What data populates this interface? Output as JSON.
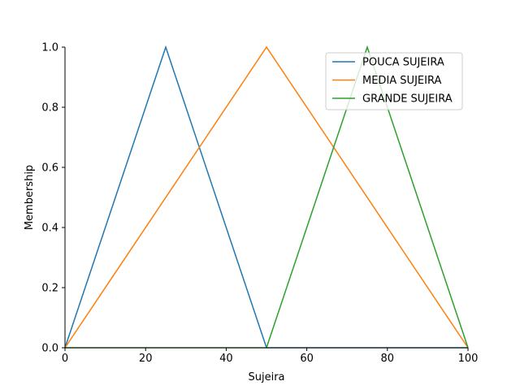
{
  "chart_data": {
    "type": "line",
    "xlabel": "Sujeira",
    "ylabel": "Membership",
    "xlim": [
      0,
      100
    ],
    "ylim": [
      0,
      1.0
    ],
    "xticks": [
      0,
      20,
      40,
      60,
      80,
      100
    ],
    "yticks": [
      "0.0",
      "0.2",
      "0.4",
      "0.6",
      "0.8",
      "1.0"
    ],
    "legend_position": "top-right",
    "grid": false,
    "series": [
      {
        "name": "POUCA SUJEIRA",
        "color": "#1f77b4",
        "x": [
          0,
          25,
          50,
          100
        ],
        "y": [
          0,
          1,
          0,
          0
        ]
      },
      {
        "name": "MEDIA SUJEIRA",
        "color": "#ff7f0e",
        "x": [
          0,
          50,
          100
        ],
        "y": [
          0,
          1,
          0
        ]
      },
      {
        "name": "GRANDE SUJEIRA",
        "color": "#2ca02c",
        "x": [
          0,
          50,
          75,
          100
        ],
        "y": [
          0,
          0,
          1,
          0
        ]
      }
    ]
  }
}
